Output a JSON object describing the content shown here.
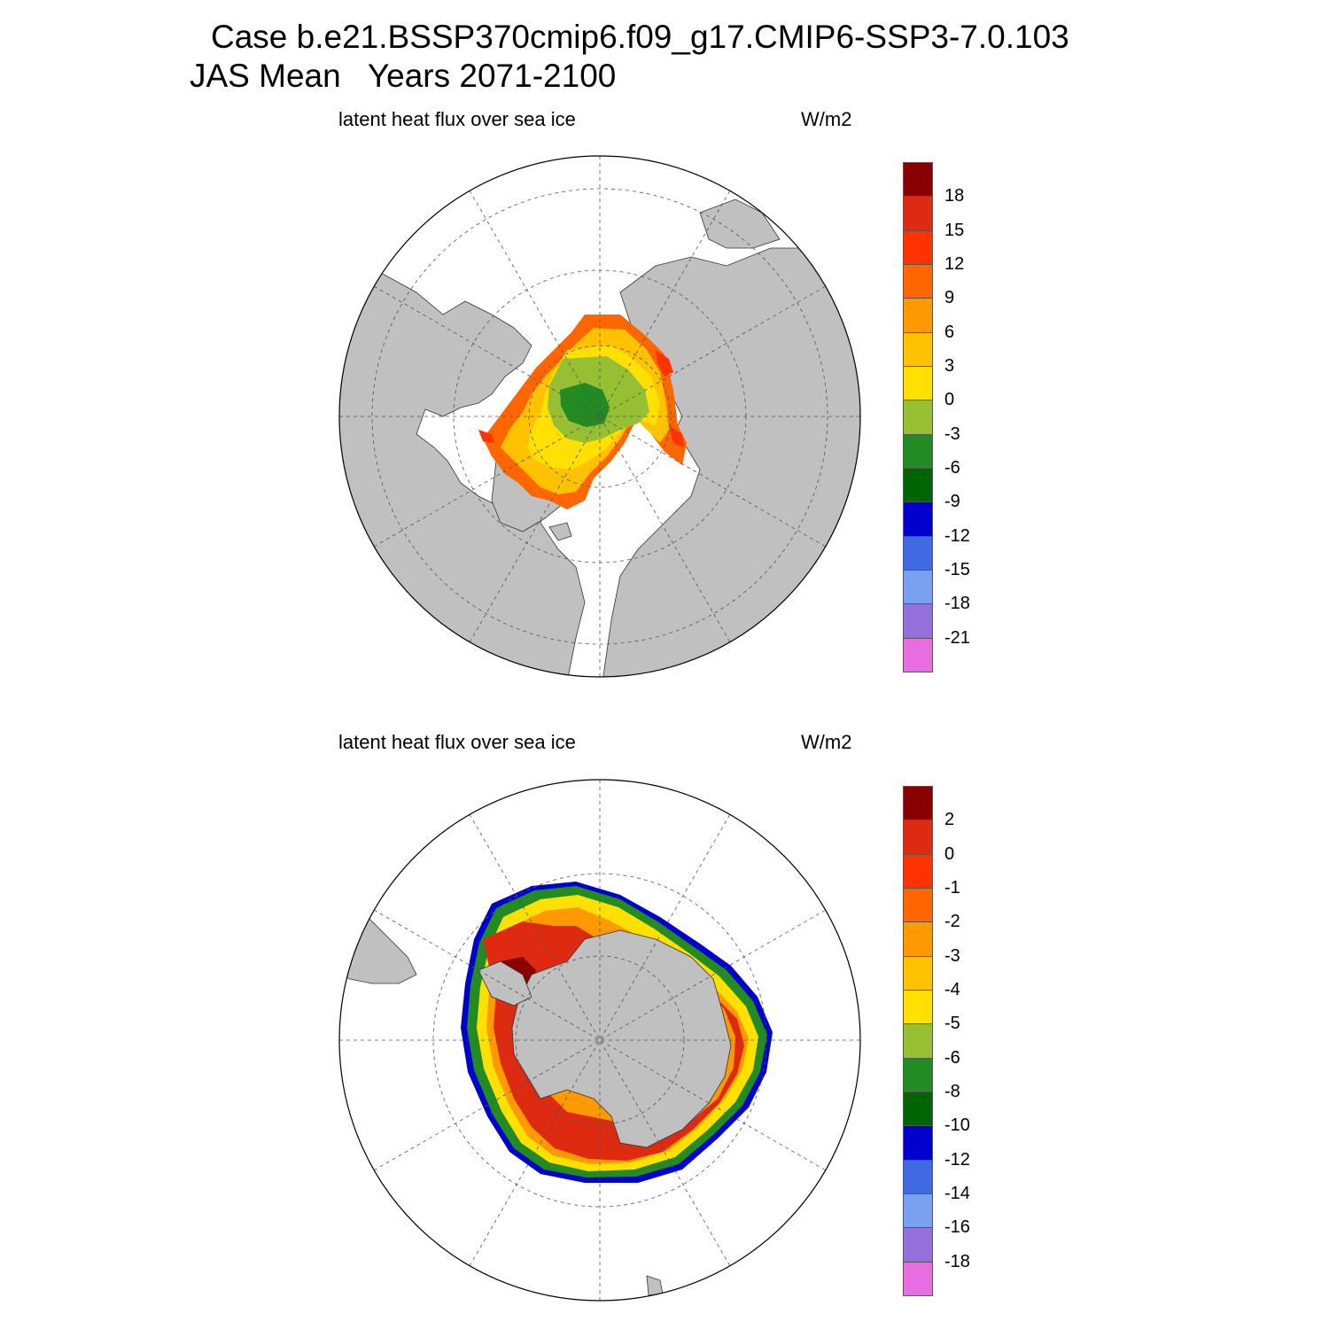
{
  "title": {
    "line1": "Case b.e21.BSSP370cmip6.f09_g17.CMIP6-SSP3-7.0.103",
    "line2": "JAS Mean   Years 2071-2100"
  },
  "panels": [
    {
      "id": "north",
      "variable_label": "latent heat flux over sea ice",
      "units_label": "W/m2",
      "colorbar": {
        "colors": [
          "#e66ee0",
          "#9370db",
          "#7aa0f0",
          "#4169e1",
          "#0000cd",
          "#006400",
          "#228b22",
          "#96bf33",
          "#ffe000",
          "#ffc200",
          "#ff9900",
          "#ff6600",
          "#ff3300",
          "#dd2a10",
          "#880000"
        ],
        "labels": [
          "-21",
          "-18",
          "-15",
          "-12",
          "-9",
          "-6",
          "-3",
          "0",
          "3",
          "6",
          "9",
          "12",
          "15",
          "18"
        ]
      }
    },
    {
      "id": "south",
      "variable_label": "latent heat flux over sea ice",
      "units_label": "W/m2",
      "colorbar": {
        "colors": [
          "#e66ee0",
          "#9370db",
          "#7aa0f0",
          "#4169e1",
          "#0000cd",
          "#006400",
          "#228b22",
          "#96bf33",
          "#ffe000",
          "#ffc200",
          "#ff9900",
          "#ff6600",
          "#ff3300",
          "#dd2a10",
          "#880000"
        ],
        "labels": [
          "-18",
          "-16",
          "-14",
          "-12",
          "-10",
          "-8",
          "-6",
          "-5",
          "-4",
          "-3",
          "-2",
          "-1",
          "0",
          "2"
        ]
      }
    }
  ],
  "map_style": {
    "land_color": "#c0c0c0",
    "ocean_color": "#ffffff",
    "grid_color": "#555555"
  }
}
